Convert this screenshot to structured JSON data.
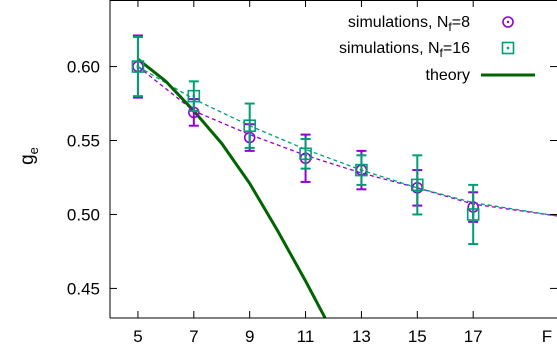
{
  "chart_data": {
    "type": "scatter",
    "xlabel": "F",
    "ylabel_main": "g",
    "ylabel_sub": "e",
    "xlim": [
      4,
      20
    ],
    "ylim": [
      0.43,
      0.645
    ],
    "xticks": [
      5,
      7,
      9,
      11,
      13,
      15,
      17
    ],
    "xtick_labels": [
      "5",
      "7",
      "9",
      "11",
      "13",
      "15",
      "17"
    ],
    "yticks": [
      0.45,
      0.5,
      0.55,
      0.6
    ],
    "ytick_labels": [
      "0.45",
      "0.50",
      "0.55",
      "0.60"
    ],
    "grid": false,
    "legend_placement": "top-right",
    "series": [
      {
        "name": "simulations, N_f=8",
        "legend_main": "simulations, N",
        "legend_sub": "f",
        "legend_tail": "=8",
        "marker": "circle",
        "color": "#9400d3",
        "x": [
          5,
          7,
          9,
          11,
          13,
          15,
          17
        ],
        "y": [
          0.6,
          0.569,
          0.552,
          0.538,
          0.53,
          0.518,
          0.505
        ],
        "yerr": [
          0.021,
          0.009,
          0.009,
          0.016,
          0.013,
          0.012,
          0.01
        ]
      },
      {
        "name": "simulations, N_f=16",
        "legend_main": "simulations, N",
        "legend_sub": "f",
        "legend_tail": "=16",
        "marker": "square",
        "color": "#009e73",
        "x": [
          5,
          7,
          9,
          11,
          13,
          15,
          17
        ],
        "y": [
          0.6,
          0.58,
          0.56,
          0.541,
          0.53,
          0.52,
          0.5
        ],
        "yerr": [
          0.02,
          0.01,
          0.015,
          0.01,
          0.01,
          0.02,
          0.02
        ]
      },
      {
        "name": "theory",
        "legend_main": "theory",
        "marker": "line",
        "color": "#006400",
        "x": [
          5,
          6,
          7,
          8,
          9,
          10,
          11,
          11.7
        ],
        "y": [
          0.605,
          0.59,
          0.57,
          0.548,
          0.521,
          0.489,
          0.455,
          0.43
        ]
      }
    ],
    "fits": [
      {
        "color": "#9400d3",
        "x": [
          5,
          7,
          9,
          11,
          13,
          15,
          17,
          20
        ],
        "y": [
          0.6,
          0.57,
          0.554,
          0.54,
          0.528,
          0.518,
          0.507,
          0.499
        ]
      },
      {
        "color": "#009e73",
        "x": [
          5,
          7,
          9,
          11,
          13,
          15,
          17,
          20
        ],
        "y": [
          0.6,
          0.578,
          0.56,
          0.544,
          0.53,
          0.518,
          0.508,
          0.499
        ]
      }
    ]
  }
}
